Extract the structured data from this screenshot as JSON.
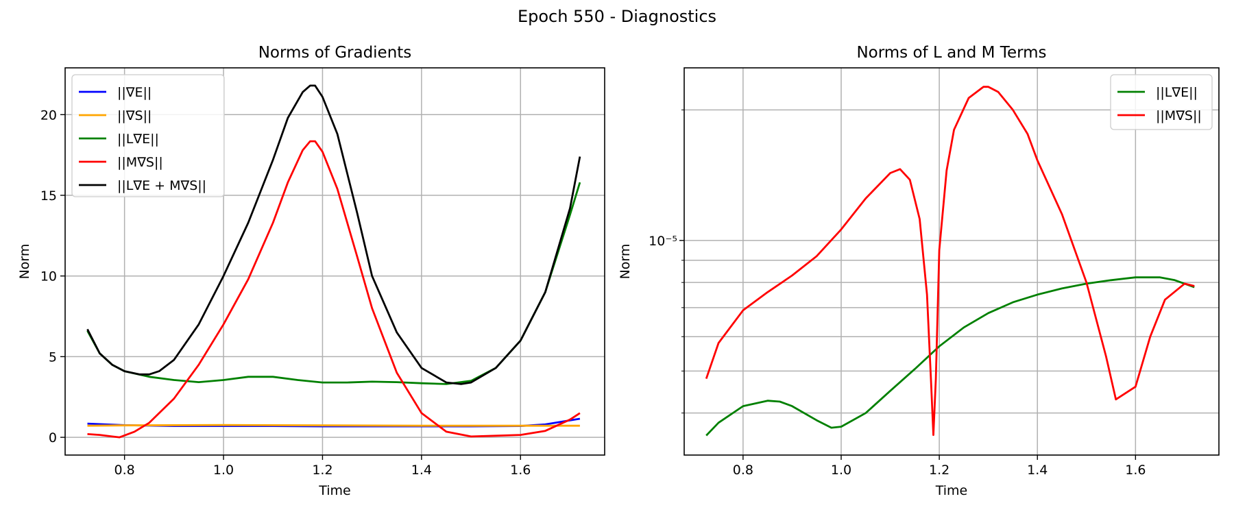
{
  "figure": {
    "suptitle": "Epoch 550 - Diagnostics"
  },
  "colors": {
    "blue": "#0000ff",
    "orange": "#ffa500",
    "green": "#008000",
    "red": "#ff0000",
    "black": "#000000"
  },
  "chart_data": [
    {
      "type": "line",
      "title": "Norms of Gradients",
      "xlabel": "Time",
      "ylabel": "Norm",
      "xlim": [
        0.68,
        1.77
      ],
      "ylim": [
        -1.1,
        22.9
      ],
      "xticks": [
        0.8,
        1.0,
        1.2,
        1.4,
        1.6
      ],
      "xtick_labels": [
        "0.8",
        "1.0",
        "1.2",
        "1.4",
        "1.6"
      ],
      "yticks": [
        0,
        5,
        10,
        15,
        20
      ],
      "ytick_labels": [
        "0",
        "5",
        "10",
        "15",
        "20"
      ],
      "yscale": "linear",
      "grid": true,
      "legend_position": "upper-left",
      "series": [
        {
          "name": "||∇E||",
          "color": "#0000ff",
          "x": [
            0.725,
            0.8,
            0.9,
            1.0,
            1.1,
            1.2,
            1.3,
            1.4,
            1.5,
            1.6,
            1.65,
            1.72
          ],
          "y": [
            0.85,
            0.75,
            0.7,
            0.7,
            0.7,
            0.68,
            0.68,
            0.68,
            0.68,
            0.7,
            0.8,
            1.15
          ]
        },
        {
          "name": "||∇S||",
          "color": "#ffa500",
          "x": [
            0.725,
            0.8,
            1.0,
            1.2,
            1.4,
            1.6,
            1.72
          ],
          "y": [
            0.72,
            0.74,
            0.76,
            0.74,
            0.72,
            0.72,
            0.72
          ]
        },
        {
          "name": "||L∇E||",
          "color": "#008000",
          "x": [
            0.725,
            0.75,
            0.775,
            0.8,
            0.85,
            0.9,
            0.95,
            1.0,
            1.05,
            1.1,
            1.15,
            1.2,
            1.25,
            1.3,
            1.35,
            1.4,
            1.45,
            1.5,
            1.55,
            1.6,
            1.65,
            1.7,
            1.72
          ],
          "y": [
            6.6,
            5.2,
            4.5,
            4.1,
            3.75,
            3.55,
            3.42,
            3.55,
            3.75,
            3.75,
            3.55,
            3.4,
            3.4,
            3.45,
            3.42,
            3.35,
            3.3,
            3.5,
            4.3,
            6.0,
            9.0,
            13.8,
            15.8
          ]
        },
        {
          "name": "||M∇S||",
          "color": "#ff0000",
          "x": [
            0.725,
            0.75,
            0.775,
            0.79,
            0.82,
            0.85,
            0.9,
            0.95,
            1.0,
            1.05,
            1.1,
            1.13,
            1.16,
            1.175,
            1.185,
            1.2,
            1.23,
            1.27,
            1.3,
            1.35,
            1.4,
            1.45,
            1.5,
            1.55,
            1.6,
            1.65,
            1.7,
            1.72
          ],
          "y": [
            0.2,
            0.15,
            0.05,
            0.0,
            0.35,
            0.9,
            2.4,
            4.5,
            7.0,
            9.8,
            13.3,
            15.8,
            17.8,
            18.35,
            18.35,
            17.7,
            15.4,
            11.2,
            8.0,
            4.0,
            1.5,
            0.35,
            0.05,
            0.1,
            0.15,
            0.4,
            1.1,
            1.5
          ]
        },
        {
          "name": "||L∇E + M∇S||",
          "color": "#000000",
          "x": [
            0.725,
            0.75,
            0.775,
            0.8,
            0.83,
            0.85,
            0.87,
            0.9,
            0.95,
            1.0,
            1.05,
            1.1,
            1.13,
            1.16,
            1.175,
            1.185,
            1.2,
            1.23,
            1.27,
            1.3,
            1.35,
            1.4,
            1.45,
            1.48,
            1.5,
            1.55,
            1.6,
            1.65,
            1.7,
            1.72
          ],
          "y": [
            6.7,
            5.2,
            4.5,
            4.1,
            3.9,
            3.9,
            4.1,
            4.8,
            7.0,
            10.0,
            13.3,
            17.2,
            19.8,
            21.4,
            21.8,
            21.8,
            21.1,
            18.8,
            13.9,
            10.0,
            6.5,
            4.3,
            3.4,
            3.3,
            3.4,
            4.3,
            6.0,
            9.0,
            14.2,
            17.4
          ]
        }
      ]
    },
    {
      "type": "line",
      "title": "Norms of L and M Terms",
      "xlabel": "Time",
      "ylabel": "Norm",
      "xlim": [
        0.68,
        1.77
      ],
      "ylim": [
        3.2e-06,
        2.5e-05
      ],
      "xticks": [
        0.8,
        1.0,
        1.2,
        1.4,
        1.6
      ],
      "xtick_labels": [
        "0.8",
        "1.0",
        "1.2",
        "1.4",
        "1.6"
      ],
      "major_yticks": [
        1e-05
      ],
      "major_ytick_labels": [
        "10⁻⁵"
      ],
      "minor_yticks": [
        4e-06,
        5e-06,
        6e-06,
        7e-06,
        8e-06,
        9e-06,
        2e-05
      ],
      "yscale": "log",
      "grid": true,
      "legend_position": "upper-right",
      "series": [
        {
          "name": "||L∇E||",
          "color": "#008000",
          "x": [
            0.725,
            0.75,
            0.8,
            0.85,
            0.875,
            0.9,
            0.95,
            0.98,
            1.0,
            1.05,
            1.1,
            1.15,
            1.2,
            1.25,
            1.3,
            1.35,
            1.4,
            1.45,
            1.5,
            1.55,
            1.6,
            1.65,
            1.68,
            1.72
          ],
          "y": [
            3.55e-06,
            3.8e-06,
            4.15e-06,
            4.27e-06,
            4.25e-06,
            4.15e-06,
            3.85e-06,
            3.7e-06,
            3.72e-06,
            4e-06,
            4.5e-06,
            5.05e-06,
            5.7e-06,
            6.3e-06,
            6.8e-06,
            7.2e-06,
            7.5e-06,
            7.75e-06,
            7.95e-06,
            8.1e-06,
            8.22e-06,
            8.22e-06,
            8.1e-06,
            7.8e-06
          ]
        },
        {
          "name": "||M∇S||",
          "color": "#ff0000",
          "x": [
            0.725,
            0.75,
            0.8,
            0.85,
            0.9,
            0.95,
            1.0,
            1.05,
            1.1,
            1.12,
            1.14,
            1.16,
            1.175,
            1.183,
            1.188,
            1.193,
            1.2,
            1.215,
            1.23,
            1.26,
            1.29,
            1.3,
            1.32,
            1.35,
            1.38,
            1.4,
            1.45,
            1.5,
            1.54,
            1.56,
            1.6,
            1.63,
            1.66,
            1.7,
            1.72
          ],
          "y": [
            4.8e-06,
            5.8e-06,
            6.9e-06,
            7.6e-06,
            8.3e-06,
            9.2e-06,
            1.06e-05,
            1.25e-05,
            1.43e-05,
            1.46e-05,
            1.38e-05,
            1.12e-05,
            7.5e-06,
            4.8e-06,
            3.56e-06,
            4.8e-06,
            9.5e-06,
            1.45e-05,
            1.8e-05,
            2.13e-05,
            2.26e-05,
            2.26e-05,
            2.2e-05,
            2e-05,
            1.76e-05,
            1.53e-05,
            1.15e-05,
            8e-06,
            5.4e-06,
            4.3e-06,
            4.6e-06,
            6e-06,
            7.3e-06,
            7.95e-06,
            7.85e-06
          ]
        }
      ]
    }
  ]
}
